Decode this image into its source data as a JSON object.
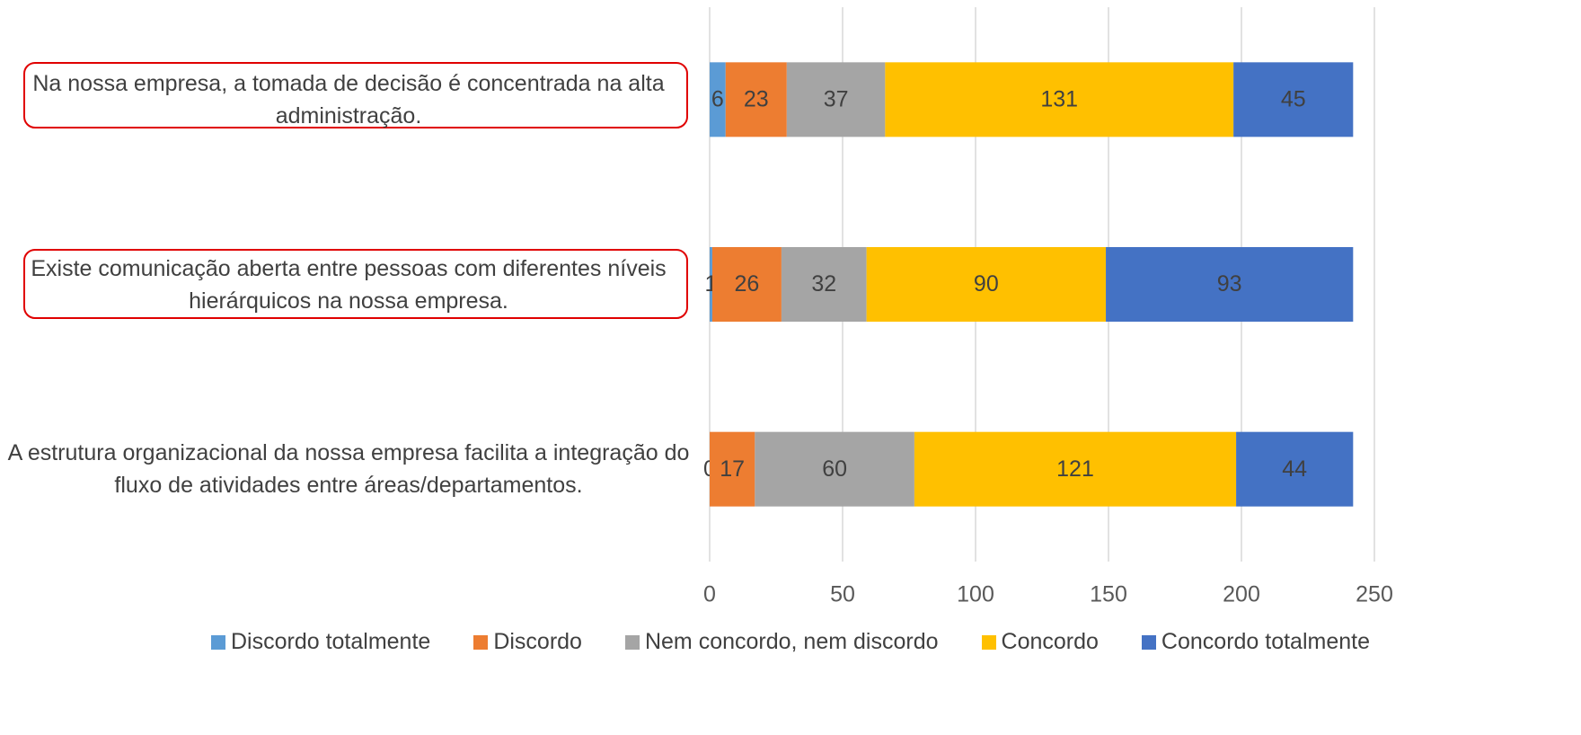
{
  "chart_data": {
    "type": "stacked-barh",
    "categories": [
      "Na nossa empresa, a tomada de decisão é concentrada na alta administração.",
      "Existe comunicação aberta entre pessoas com diferentes níveis hierárquicos na nossa empresa.",
      "A estrutura organizacional da nossa empresa facilita a integração do fluxo de atividades entre áreas/departamentos."
    ],
    "series": [
      {
        "name": "Discordo totalmente",
        "color": "#5b9bd5",
        "values": [
          6,
          1,
          0
        ]
      },
      {
        "name": "Discordo",
        "color": "#ed7d31",
        "values": [
          23,
          26,
          17
        ]
      },
      {
        "name": "Nem concordo, nem discordo",
        "color": "#a5a5a5",
        "values": [
          37,
          32,
          60
        ]
      },
      {
        "name": "Concordo",
        "color": "#ffc000",
        "values": [
          131,
          90,
          121
        ]
      },
      {
        "name": "Concordo totalmente",
        "color": "#4472c4",
        "values": [
          45,
          93,
          44
        ]
      }
    ],
    "xlim": [
      0,
      250
    ],
    "xticks": [
      0,
      50,
      100,
      150,
      200,
      250
    ],
    "grid": true,
    "legend": "bottom"
  }
}
